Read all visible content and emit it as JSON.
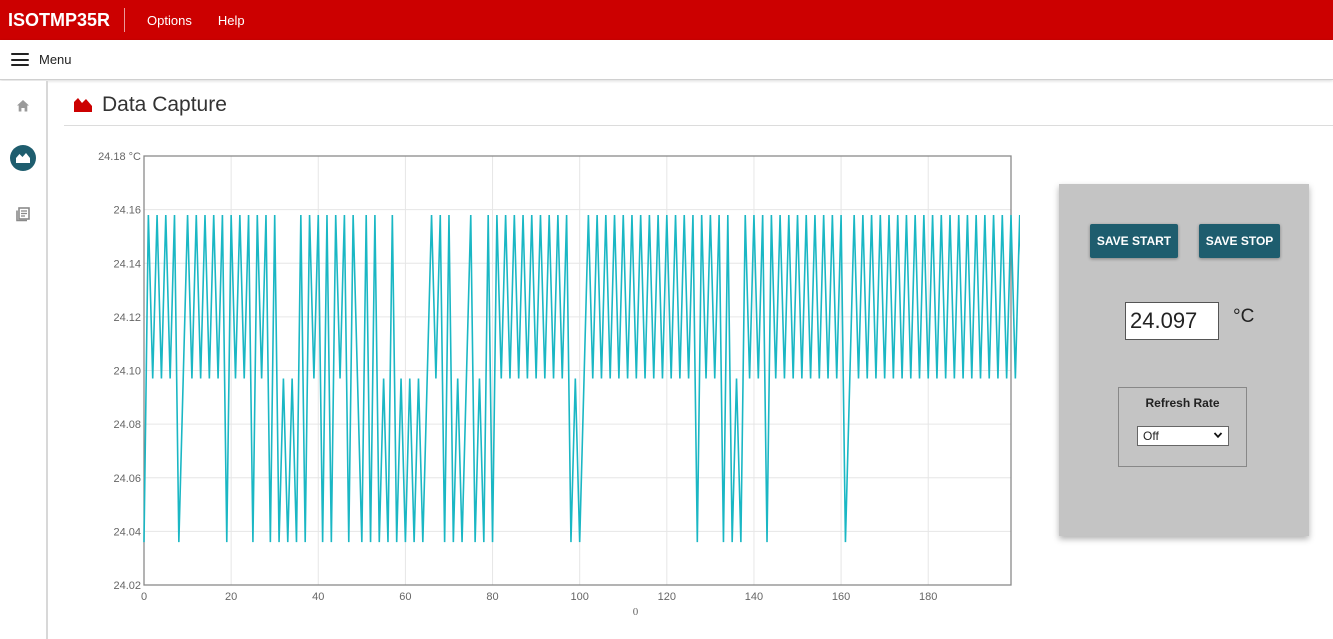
{
  "header": {
    "app_title": "ISOTMP35R",
    "menus": [
      "Options",
      "Help"
    ]
  },
  "menubar": {
    "label": "Menu"
  },
  "sidebar": {
    "icons": [
      "home-icon",
      "chart-area-icon",
      "document-list-icon"
    ],
    "active": "chart-area-icon"
  },
  "page": {
    "title": "Data Capture"
  },
  "controls": {
    "save_start_label": "SAVE START",
    "save_stop_label": "SAVE STOP",
    "temperature_value": "24.097",
    "temperature_unit": "°C",
    "refresh_rate_title": "Refresh Rate",
    "refresh_rate_selected": "Off"
  },
  "colors": {
    "brand_red": "#cc0000",
    "button_teal": "#1e5d6e",
    "series_line": "#1ab7c4"
  },
  "chart_data": {
    "type": "line",
    "xlabel": "0",
    "ylabel": "",
    "y_unit": "°C",
    "xlim": [
      0,
      199
    ],
    "ylim": [
      24.02,
      24.18
    ],
    "x_ticks": [
      0,
      20,
      40,
      60,
      80,
      100,
      120,
      140,
      160,
      180
    ],
    "y_ticks": [
      24.02,
      24.04,
      24.06,
      24.08,
      24.1,
      24.12,
      24.14,
      24.16,
      24.18
    ],
    "y_tick_labels": [
      "24.02",
      "24.04",
      "24.06",
      "24.08",
      "24.10",
      "24.12",
      "24.14",
      "24.16",
      "24.18 °C"
    ],
    "grid": true,
    "series": [
      {
        "values": [
          24.036,
          24.158,
          24.097,
          24.158,
          24.097,
          24.158,
          24.097,
          24.158,
          24.036,
          24.097,
          24.158,
          24.097,
          24.158,
          24.097,
          24.158,
          24.097,
          24.158,
          24.097,
          24.158,
          24.036,
          24.158,
          24.097,
          24.158,
          24.097,
          24.158,
          24.036,
          24.158,
          24.097,
          24.158,
          24.036,
          24.158,
          24.036,
          24.097,
          24.036,
          24.097,
          24.036,
          24.158,
          24.036,
          24.158,
          24.097,
          24.158,
          24.036,
          24.158,
          24.036,
          24.158,
          24.097,
          24.158,
          24.036,
          24.158,
          24.097,
          24.036,
          24.158,
          24.036,
          24.158,
          24.036,
          24.097,
          24.036,
          24.158,
          24.036,
          24.097,
          24.036,
          24.097,
          24.036,
          24.097,
          24.036,
          24.097,
          24.158,
          24.097,
          24.158,
          24.036,
          24.158,
          24.036,
          24.097,
          24.036,
          24.097,
          24.158,
          24.036,
          24.097,
          24.036,
          24.158,
          24.036,
          24.158,
          24.097,
          24.158,
          24.097,
          24.158,
          24.097,
          24.158,
          24.097,
          24.158,
          24.097,
          24.158,
          24.097,
          24.158,
          24.097,
          24.158,
          24.097,
          24.158,
          24.036,
          24.097,
          24.036,
          24.097,
          24.158,
          24.097,
          24.158,
          24.097,
          24.158,
          24.097,
          24.158,
          24.097,
          24.158,
          24.097,
          24.158,
          24.097,
          24.158,
          24.097,
          24.158,
          24.097,
          24.158,
          24.097,
          24.158,
          24.097,
          24.158,
          24.097,
          24.158,
          24.097,
          24.158,
          24.036,
          24.158,
          24.097,
          24.158,
          24.097,
          24.158,
          24.036,
          24.158,
          24.036,
          24.097,
          24.036,
          24.158,
          24.097,
          24.158,
          24.097,
          24.158,
          24.036,
          24.158,
          24.097,
          24.158,
          24.097,
          24.158,
          24.097,
          24.158,
          24.097,
          24.158,
          24.097,
          24.158,
          24.097,
          24.158,
          24.097,
          24.158,
          24.097,
          24.158,
          24.036,
          24.097,
          24.158,
          24.097,
          24.158,
          24.097,
          24.158,
          24.097,
          24.158,
          24.097,
          24.158,
          24.097,
          24.158,
          24.097,
          24.158,
          24.097,
          24.158,
          24.097,
          24.158,
          24.097,
          24.158,
          24.097,
          24.158,
          24.097,
          24.158,
          24.097,
          24.158,
          24.097,
          24.158,
          24.097,
          24.158,
          24.097,
          24.158,
          24.097,
          24.158,
          24.097,
          24.158,
          24.097,
          24.158,
          24.097,
          24.158,
          24.097
        ]
      }
    ]
  }
}
